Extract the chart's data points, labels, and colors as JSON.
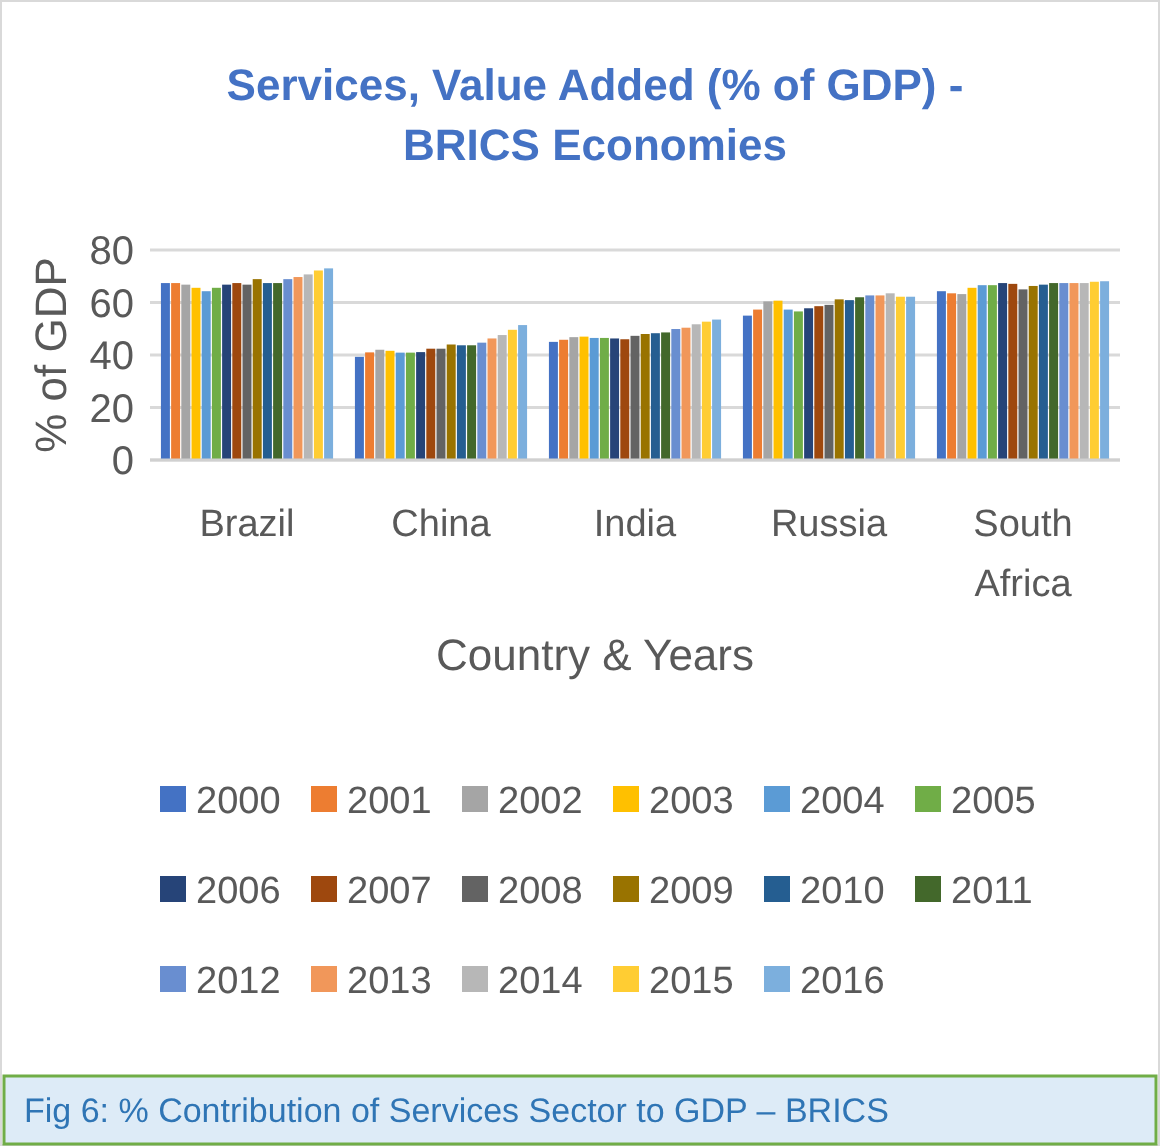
{
  "chart_data": {
    "type": "bar",
    "title": "Services, Value Added (% of GDP) -\nBRICS Economies",
    "xlabel": "Country & Years",
    "ylabel": "% of GDP",
    "categories": [
      "Brazil",
      "China",
      "India",
      "Russia",
      "South Africa"
    ],
    "ylim": [
      0,
      80
    ],
    "yticks": [
      0,
      20,
      40,
      60,
      80
    ],
    "grid": "y",
    "legend": "bottom",
    "annotations": [
      "Fig 6: % Contribution of Services Sector to GDP – BRICS"
    ],
    "series": [
      {
        "name": "2000",
        "color": "#4472c4",
        "values": [
          67.4,
          39.3,
          45,
          55,
          64.3
        ]
      },
      {
        "name": "2001",
        "color": "#ed7d31",
        "values": [
          67.4,
          41,
          45.8,
          57.3,
          63.5
        ]
      },
      {
        "name": "2002",
        "color": "#a5a5a5",
        "values": [
          66.8,
          42,
          46.8,
          60.4,
          63.2
        ]
      },
      {
        "name": "2003",
        "color": "#ffc000",
        "values": [
          65.6,
          41.6,
          47,
          60.7,
          65.6
        ]
      },
      {
        "name": "2004",
        "color": "#5b9bd5",
        "values": [
          64.3,
          40.9,
          46.5,
          57.3,
          66.6
        ]
      },
      {
        "name": "2005",
        "color": "#70ad47",
        "values": [
          65.6,
          40.9,
          46.5,
          56.6,
          66.6
        ]
      },
      {
        "name": "2006",
        "color": "#264478",
        "values": [
          66.8,
          41.1,
          46.3,
          57.8,
          67.4
        ]
      },
      {
        "name": "2007",
        "color": "#9e480e",
        "values": [
          67.4,
          42.4,
          46,
          58.6,
          67.1
        ]
      },
      {
        "name": "2008",
        "color": "#636363",
        "values": [
          66.8,
          42.4,
          47.3,
          59.1,
          65
        ]
      },
      {
        "name": "2009",
        "color": "#997300",
        "values": [
          68.9,
          44,
          48,
          61.2,
          66.3
        ]
      },
      {
        "name": "2010",
        "color": "#255e91",
        "values": [
          67.4,
          43.7,
          48.3,
          60.9,
          66.8
        ]
      },
      {
        "name": "2011",
        "color": "#43682b",
        "values": [
          67.4,
          43.7,
          48.6,
          62,
          67.4
        ]
      },
      {
        "name": "2012",
        "color": "#698ed0",
        "values": [
          68.9,
          44.7,
          49.9,
          62.7,
          67.4
        ]
      },
      {
        "name": "2013",
        "color": "#f1975a",
        "values": [
          69.7,
          46.3,
          50.4,
          62.7,
          67.4
        ]
      },
      {
        "name": "2014",
        "color": "#b7b7b7",
        "values": [
          70.7,
          47.6,
          51.7,
          63.5,
          67.4
        ]
      },
      {
        "name": "2015",
        "color": "#ffcd33",
        "values": [
          72.2,
          49.6,
          52.7,
          62.2,
          67.9
        ]
      },
      {
        "name": "2016",
        "color": "#7cafdd",
        "values": [
          73,
          51.4,
          53.5,
          62.2,
          68.1
        ]
      }
    ]
  }
}
